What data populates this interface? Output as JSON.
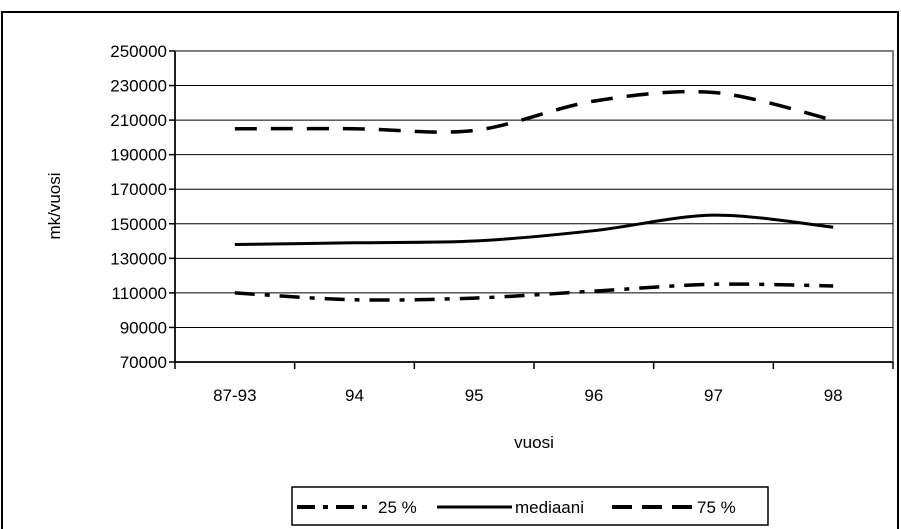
{
  "chart_data": {
    "type": "line",
    "title": "",
    "xlabel": "vuosi",
    "ylabel": "mk/vuosi",
    "categories": [
      "87-93",
      "94",
      "95",
      "96",
      "97",
      "98"
    ],
    "ylim": [
      70000,
      250000
    ],
    "yticks": [
      70000,
      90000,
      110000,
      130000,
      150000,
      170000,
      190000,
      210000,
      230000,
      250000
    ],
    "grid": "horizontal",
    "legend_position": "bottom",
    "series": [
      {
        "name": "25 %",
        "values": [
          110000,
          106000,
          107000,
          111000,
          115000,
          114000
        ],
        "dash": "dash-dot"
      },
      {
        "name": "mediaani",
        "values": [
          138000,
          139000,
          140000,
          146000,
          155000,
          148000
        ],
        "dash": "solid"
      },
      {
        "name": "75 %",
        "values": [
          205000,
          205000,
          204000,
          221000,
          226000,
          210000
        ],
        "dash": "dashed"
      }
    ]
  }
}
